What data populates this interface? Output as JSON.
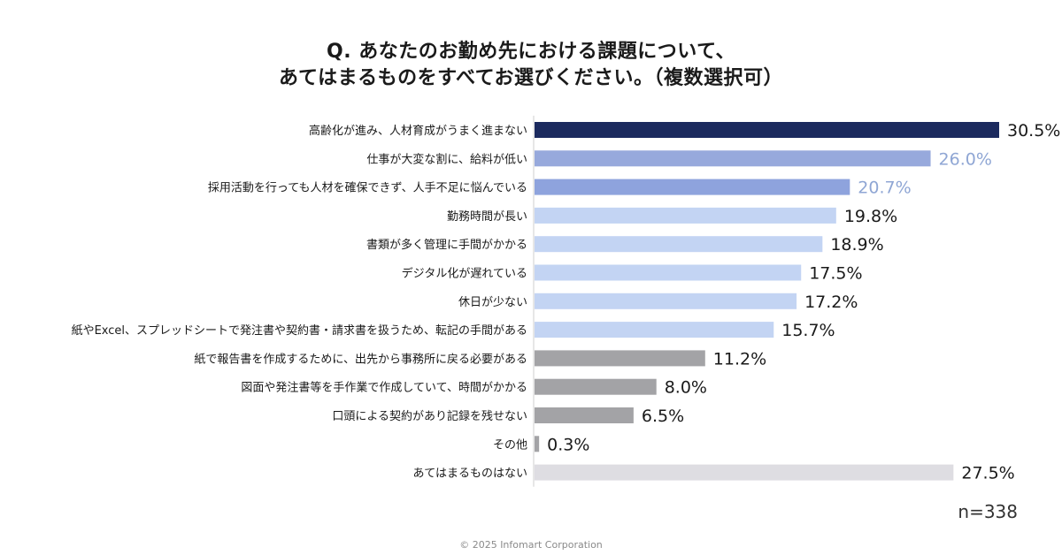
{
  "header": {
    "title_line1": "Q. あなたのお勤め先における課題について、",
    "title_line2": "あてはまるものをすべてお選びください。（複数選択可）"
  },
  "chart_data": {
    "type": "bar",
    "orientation": "horizontal",
    "title": "Q. あなたのお勤め先における課題について、あてはまるものをすべてお選びください。（複数選択可）",
    "unit": "%",
    "categories": [
      "高齢化が進み、人材育成がうまく進まない",
      "仕事が大変な割に、給料が低い",
      "採用活動を行っても人材を確保できず、人手不足に悩んでいる",
      "勤務時間が長い",
      "書類が多く管理に手間がかかる",
      "デジタル化が遅れている",
      "休日が少ない",
      "紙やExcel、スプレッドシートで発注書や契約書・請求書を扱うため、転記の手間がある",
      "紙で報告書を作成するために、出先から事務所に戻る必要がある",
      "図面や発注書等を手作業で作成していて、時間がかかる",
      "口頭による契約があり記録を残せない",
      "その他",
      "あてはまるものはない"
    ],
    "values": [
      30.5,
      26.0,
      20.7,
      19.8,
      18.9,
      17.5,
      17.2,
      15.7,
      11.2,
      8.0,
      6.5,
      0.3,
      27.5
    ],
    "value_labels": [
      "30.5%",
      "26.0%",
      "20.7%",
      "19.8%",
      "18.9%",
      "17.5%",
      "17.2%",
      "15.7%",
      "11.2%",
      "8.0%",
      "6.5%",
      "0.3%",
      "27.5%"
    ],
    "bar_colors": [
      "#1b2a5e",
      "#97a9dc",
      "#8ea3dd",
      "#c3d4f3",
      "#c3d4f3",
      "#c3d4f3",
      "#c3d4f3",
      "#c3d4f3",
      "#a3a3a6",
      "#a3a3a6",
      "#a3a3a6",
      "#a3a3a6",
      "#dedde2"
    ],
    "label_colors": [
      "#1a1a1a",
      "#8fa6d4",
      "#8fa6d4",
      "#1a1a1a",
      "#1a1a1a",
      "#1a1a1a",
      "#1a1a1a",
      "#1a1a1a",
      "#1a1a1a",
      "#1a1a1a",
      "#1a1a1a",
      "#1a1a1a",
      "#1a1a1a"
    ],
    "xlim": [
      0,
      30.5
    ],
    "grid": false,
    "legend": "none"
  },
  "footer": {
    "sample_size": "n=338",
    "copyright": "© 2025 Infomart Corporation"
  }
}
